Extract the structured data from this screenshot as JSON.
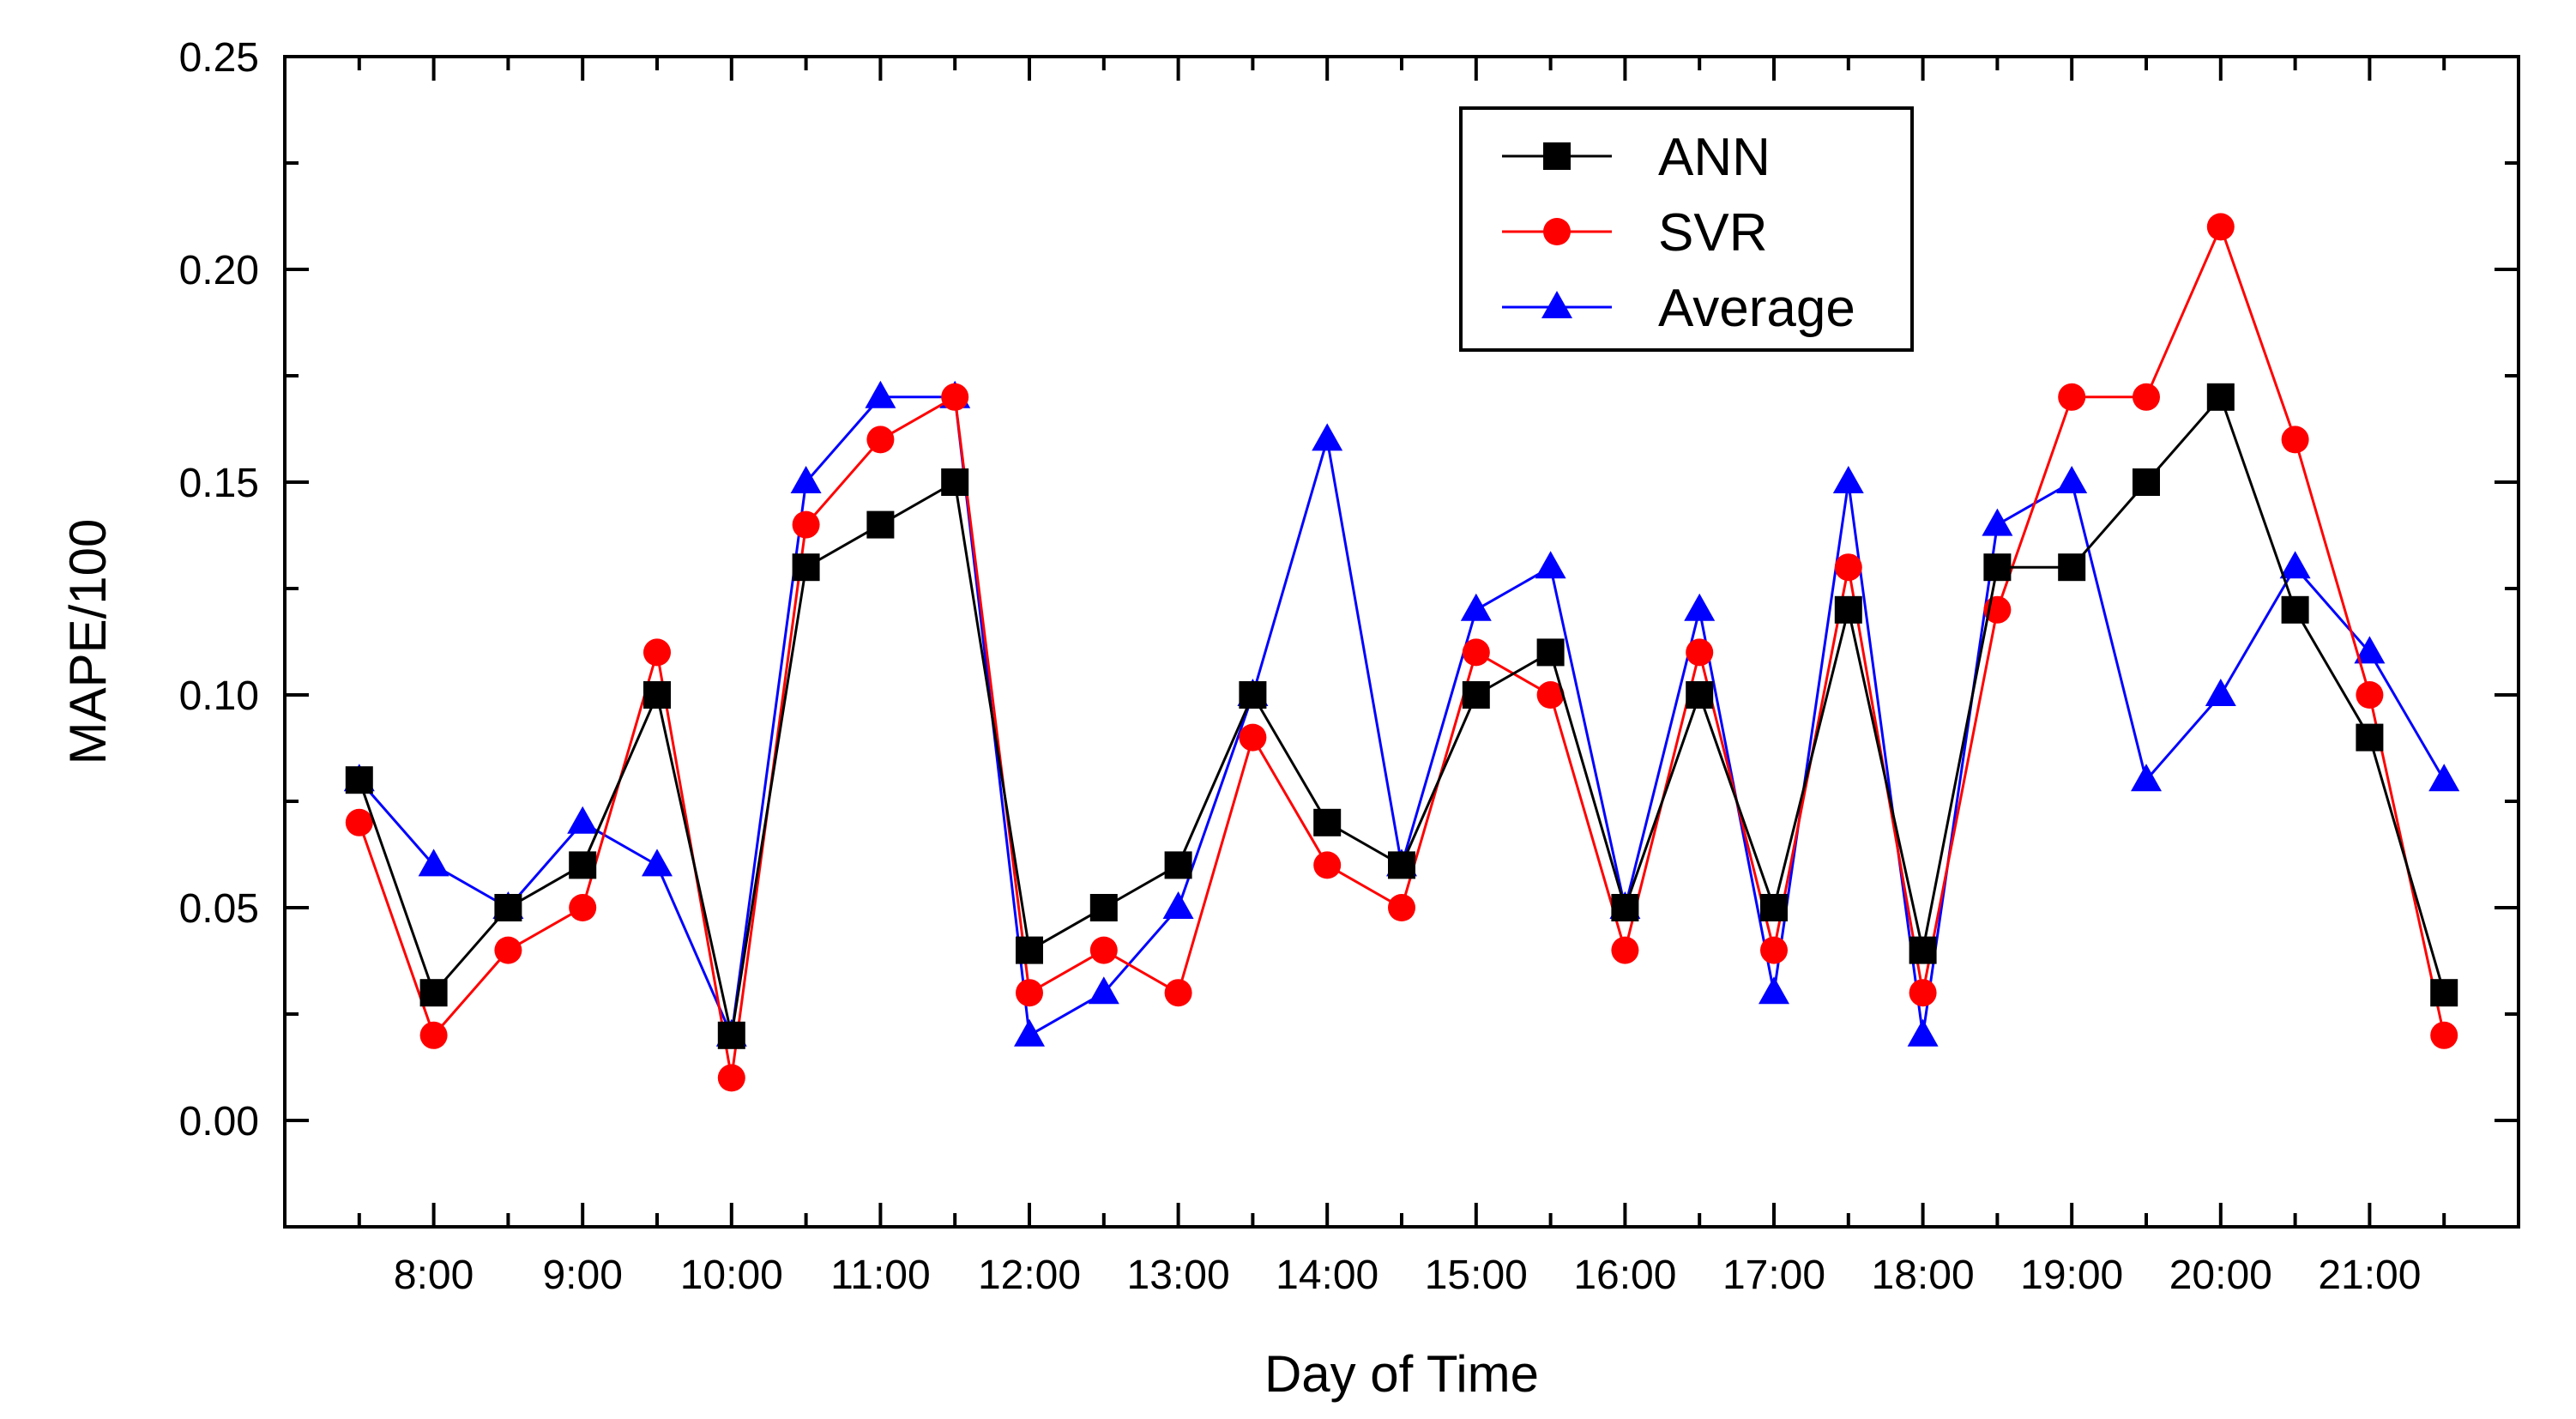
{
  "chart_data": {
    "type": "line",
    "xlabel": "Day of Time",
    "ylabel": "MAPE/100",
    "ylim": [
      -0.025,
      0.25
    ],
    "yticks": [
      0.0,
      0.05,
      0.1,
      0.15,
      0.2,
      0.25
    ],
    "ytick_labels": [
      "0.00",
      "0.05",
      "0.10",
      "0.15",
      "0.20",
      "0.25"
    ],
    "xlim": [
      7.0,
      22.0
    ],
    "xticks": [
      8,
      9,
      10,
      11,
      12,
      13,
      14,
      15,
      16,
      17,
      18,
      19,
      20,
      21
    ],
    "xtick_labels": [
      "8:00",
      "9:00",
      "10:00",
      "11:00",
      "12:00",
      "13:00",
      "14:00",
      "15:00",
      "16:00",
      "17:00",
      "18:00",
      "19:00",
      "20:00",
      "21:00"
    ],
    "x": [
      7.5,
      8.0,
      8.5,
      9.0,
      9.5,
      10.0,
      10.5,
      11.0,
      11.5,
      12.0,
      12.5,
      13.0,
      13.5,
      14.0,
      14.5,
      15.0,
      15.5,
      16.0,
      16.5,
      17.0,
      17.5,
      18.0,
      18.5,
      19.0,
      19.5,
      20.0,
      20.5,
      21.0,
      21.5
    ],
    "legend_position": "top-right",
    "grid": false,
    "series": [
      {
        "name": "ANN",
        "color": "#000000",
        "marker": "square",
        "values": [
          0.08,
          0.03,
          0.05,
          0.06,
          0.1,
          0.02,
          0.13,
          0.14,
          0.15,
          0.04,
          0.05,
          0.06,
          0.1,
          0.07,
          0.06,
          0.1,
          0.11,
          0.05,
          0.1,
          0.05,
          0.12,
          0.04,
          0.13,
          0.13,
          0.15,
          0.17,
          0.12,
          0.09,
          0.03
        ]
      },
      {
        "name": "SVR",
        "color": "#ff0000",
        "marker": "circle",
        "values": [
          0.07,
          0.02,
          0.04,
          0.05,
          0.11,
          0.01,
          0.14,
          0.16,
          0.17,
          0.03,
          0.04,
          0.03,
          0.09,
          0.06,
          0.05,
          0.11,
          0.1,
          0.04,
          0.11,
          0.04,
          0.13,
          0.03,
          0.12,
          0.17,
          0.17,
          0.21,
          0.16,
          0.1,
          0.02
        ]
      },
      {
        "name": "Average",
        "color": "#0000ff",
        "marker": "triangle",
        "values": [
          0.08,
          0.06,
          0.05,
          0.07,
          0.06,
          0.02,
          0.15,
          0.17,
          0.17,
          0.02,
          0.03,
          0.05,
          0.1,
          0.16,
          0.06,
          0.12,
          0.13,
          0.05,
          0.12,
          0.03,
          0.15,
          0.02,
          0.14,
          0.15,
          0.08,
          0.1,
          0.13,
          0.11,
          0.08
        ]
      }
    ]
  }
}
